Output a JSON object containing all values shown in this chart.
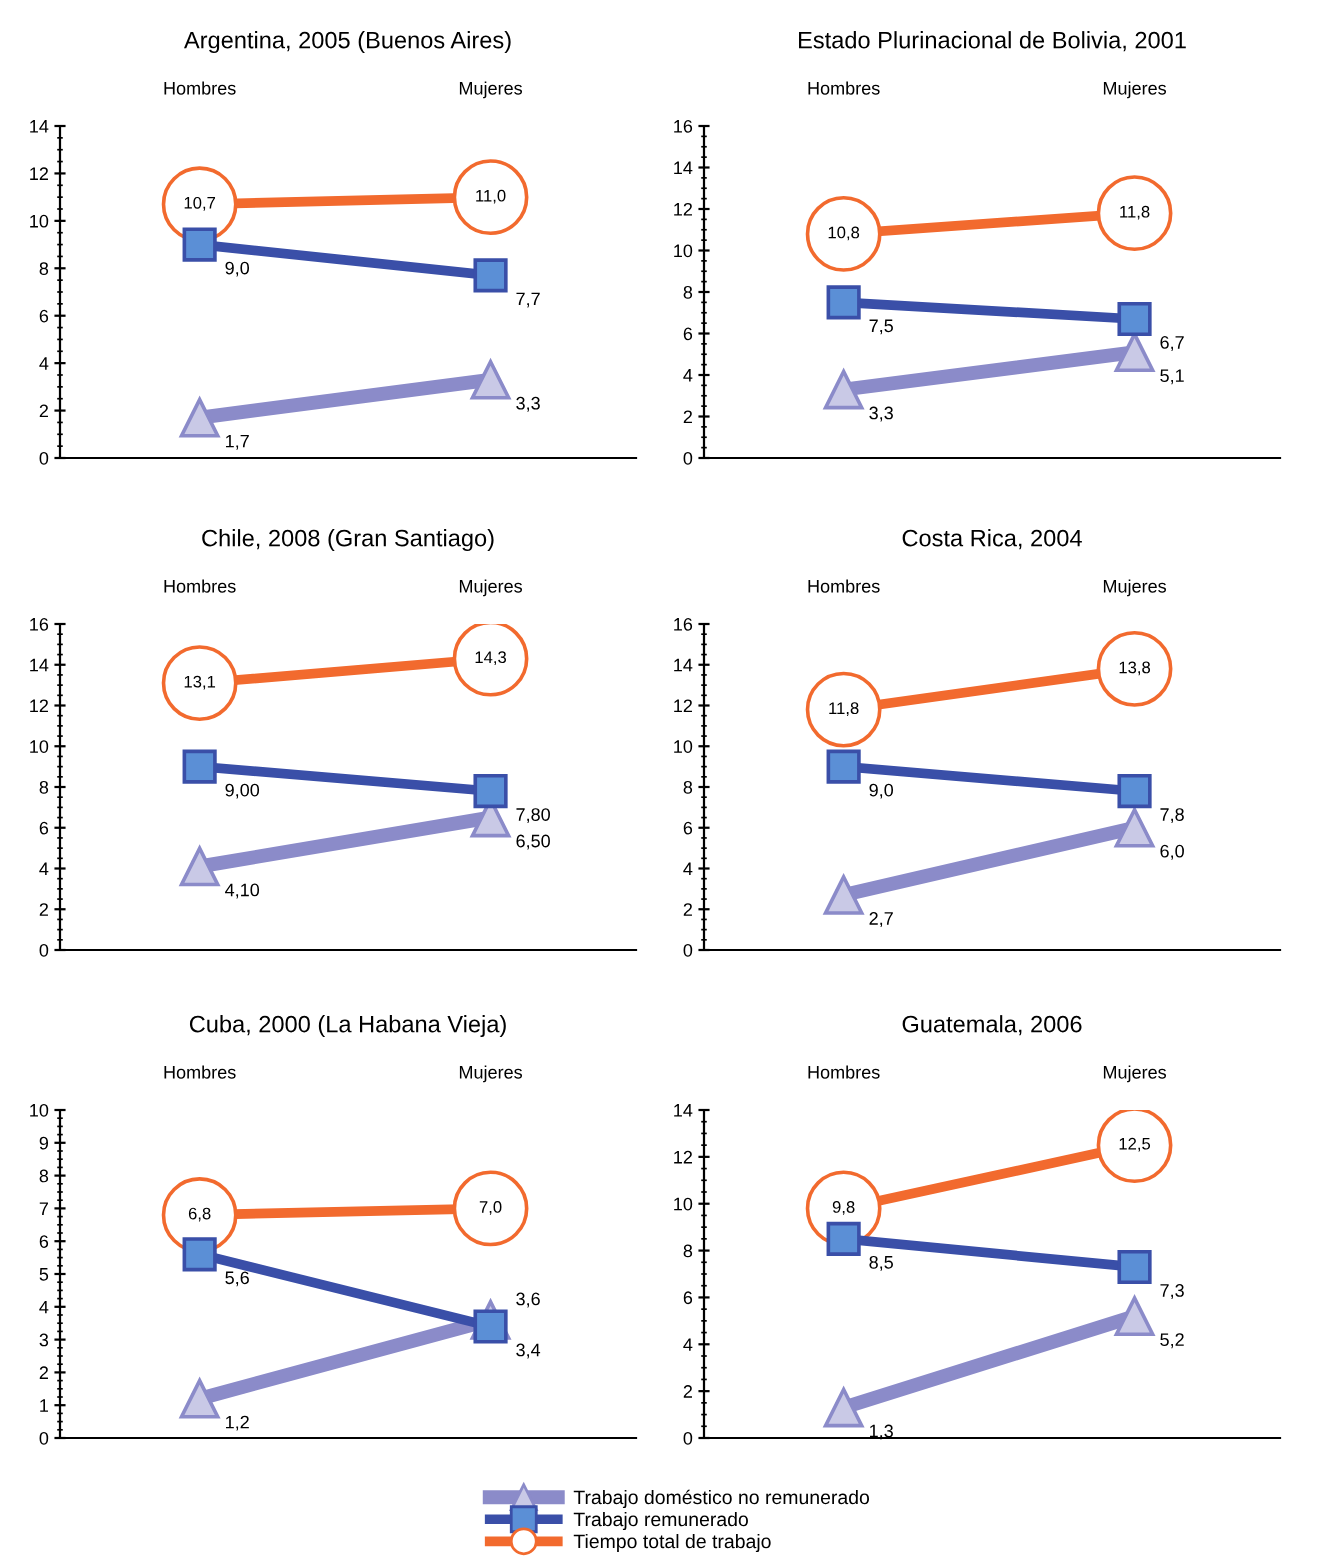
{
  "chart_data": [
    {
      "type": "line",
      "title": "Argentina, 2005 (Buenos Aires)",
      "categories": [
        "Hombres",
        "Mujeres"
      ],
      "ylim": [
        0,
        14
      ],
      "yticks": [
        0,
        2,
        4,
        6,
        8,
        10,
        12,
        14
      ],
      "grid": false,
      "legend": "bottom",
      "series": [
        {
          "name": "Trabajo doméstico no remunerado",
          "color": "#8b8bc9",
          "marker": "triangle",
          "values": [
            1.7,
            3.3
          ],
          "value_labels": [
            "1,7",
            "3,3"
          ]
        },
        {
          "name": "Trabajo remunerado",
          "color": "#3a4fa8",
          "marker": "square",
          "values": [
            9.0,
            7.7
          ],
          "value_labels": [
            "9,0",
            "7,7"
          ]
        },
        {
          "name": "Tiempo total de trabajo",
          "color": "#f26a2e",
          "marker": "circle",
          "values": [
            10.7,
            11.0
          ],
          "value_labels": [
            "10,7",
            "11,0"
          ]
        }
      ]
    },
    {
      "type": "line",
      "title": "Estado Plurinacional de Bolivia, 2001",
      "categories": [
        "Hombres",
        "Mujeres"
      ],
      "ylim": [
        0,
        16
      ],
      "yticks": [
        0,
        2,
        4,
        6,
        8,
        10,
        12,
        14,
        16
      ],
      "grid": false,
      "series": [
        {
          "color": "#8b8bc9",
          "marker": "triangle",
          "values": [
            3.3,
            5.1
          ],
          "value_labels": [
            "3,3",
            "5,1"
          ]
        },
        {
          "color": "#3a4fa8",
          "marker": "square",
          "values": [
            7.5,
            6.7
          ],
          "value_labels": [
            "7,5",
            "6,7"
          ]
        },
        {
          "color": "#f26a2e",
          "marker": "circle",
          "values": [
            10.8,
            11.8
          ],
          "value_labels": [
            "10,8",
            "11,8"
          ]
        }
      ]
    },
    {
      "type": "line",
      "title": "Chile, 2008 (Gran Santiago)",
      "categories": [
        "Hombres",
        "Mujeres"
      ],
      "ylim": [
        0,
        16
      ],
      "yticks": [
        0,
        2,
        4,
        6,
        8,
        10,
        12,
        14,
        16
      ],
      "grid": false,
      "series": [
        {
          "color": "#8b8bc9",
          "marker": "triangle",
          "values": [
            4.1,
            6.5
          ],
          "value_labels": [
            "4,10",
            "6,50"
          ]
        },
        {
          "color": "#3a4fa8",
          "marker": "square",
          "values": [
            9.0,
            7.8
          ],
          "value_labels": [
            "9,00",
            "7,80"
          ]
        },
        {
          "color": "#f26a2e",
          "marker": "circle",
          "values": [
            13.1,
            14.3
          ],
          "value_labels": [
            "13,1",
            "14,3"
          ]
        }
      ]
    },
    {
      "type": "line",
      "title": "Costa Rica, 2004",
      "categories": [
        "Hombres",
        "Mujeres"
      ],
      "ylim": [
        0,
        16
      ],
      "yticks": [
        0,
        2,
        4,
        6,
        8,
        10,
        12,
        14,
        16
      ],
      "grid": false,
      "series": [
        {
          "color": "#8b8bc9",
          "marker": "triangle",
          "values": [
            2.7,
            6.0
          ],
          "value_labels": [
            "2,7",
            "6,0"
          ]
        },
        {
          "color": "#3a4fa8",
          "marker": "square",
          "values": [
            9.0,
            7.8
          ],
          "value_labels": [
            "9,0",
            "7,8"
          ]
        },
        {
          "color": "#f26a2e",
          "marker": "circle",
          "values": [
            11.8,
            13.8
          ],
          "value_labels": [
            "11,8",
            "13,8"
          ]
        }
      ]
    },
    {
      "type": "line",
      "title": "Cuba, 2000 (La Habana Vieja)",
      "categories": [
        "Hombres",
        "Mujeres"
      ],
      "ylim": [
        0,
        10
      ],
      "yticks": [
        0,
        1,
        2,
        3,
        4,
        5,
        6,
        7,
        8,
        9,
        10
      ],
      "grid": false,
      "series": [
        {
          "color": "#8b8bc9",
          "marker": "triangle",
          "values": [
            1.2,
            3.6
          ],
          "value_labels": [
            "1,2",
            "3,6"
          ]
        },
        {
          "color": "#3a4fa8",
          "marker": "square",
          "values": [
            5.6,
            3.4
          ],
          "value_labels": [
            "5,6",
            "3,4"
          ]
        },
        {
          "color": "#f26a2e",
          "marker": "circle",
          "values": [
            6.8,
            7.0
          ],
          "value_labels": [
            "6,8",
            "7,0"
          ]
        }
      ]
    },
    {
      "type": "line",
      "title": "Guatemala, 2006",
      "categories": [
        "Hombres",
        "Mujeres"
      ],
      "ylim": [
        0,
        14
      ],
      "yticks": [
        0,
        2,
        4,
        6,
        8,
        10,
        12,
        14
      ],
      "grid": false,
      "series": [
        {
          "color": "#8b8bc9",
          "marker": "triangle",
          "values": [
            1.3,
            5.2
          ],
          "value_labels": [
            "1,3",
            "5,2"
          ]
        },
        {
          "color": "#3a4fa8",
          "marker": "square",
          "values": [
            8.5,
            7.3
          ],
          "value_labels": [
            "8,5",
            "7,3"
          ]
        },
        {
          "color": "#f26a2e",
          "marker": "circle",
          "values": [
            9.8,
            12.5
          ],
          "value_labels": [
            "9,8",
            "12,5"
          ]
        }
      ]
    }
  ]
}
